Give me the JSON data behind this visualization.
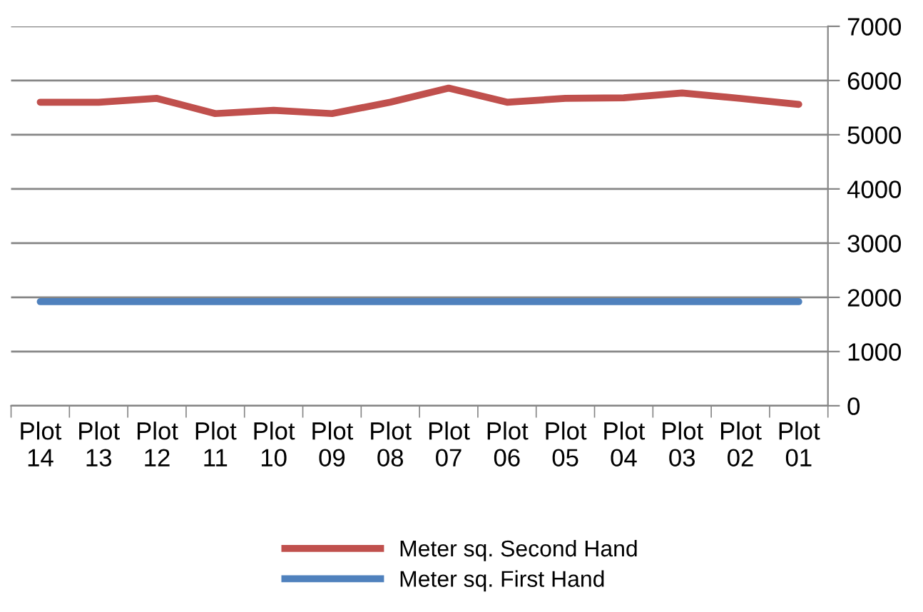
{
  "chart_data": {
    "type": "line",
    "categories": [
      "Plot\n14",
      "Plot\n13",
      "Plot\n12",
      "Plot\n11",
      "Plot\n10",
      "Plot\n09",
      "Plot\n08",
      "Plot\n07",
      "Plot\n06",
      "Plot\n05",
      "Plot\n04",
      "Plot\n03",
      "Plot\n02",
      "Plot\n01"
    ],
    "series": [
      {
        "name": "Meter sq. Second Hand",
        "color": "#c0504d",
        "values": [
          5600,
          5600,
          5670,
          5390,
          5450,
          5390,
          5600,
          5860,
          5600,
          5670,
          5680,
          5770,
          5670,
          5560
        ]
      },
      {
        "name": "Meter sq. First Hand",
        "color": "#4f81bd",
        "values": [
          1920,
          1920,
          1920,
          1920,
          1920,
          1920,
          1920,
          1920,
          1920,
          1920,
          1920,
          1920,
          1920,
          1920
        ]
      }
    ],
    "ylim": [
      0,
      7000
    ],
    "yticks": [
      0,
      1000,
      2000,
      3000,
      4000,
      5000,
      6000,
      7000
    ],
    "grid": "y",
    "legend": "bottom",
    "marker": "none",
    "line_style": "solid"
  }
}
